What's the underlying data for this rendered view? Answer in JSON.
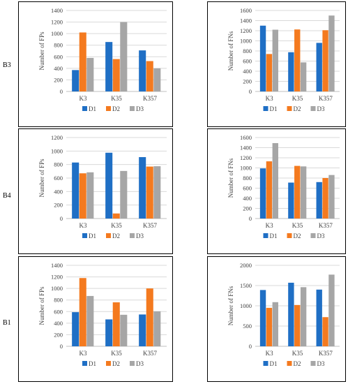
{
  "row_labels": [
    "B3",
    "B4",
    "B1"
  ],
  "colors": {
    "D1": "#1f6fc5",
    "D2": "#f47a1f",
    "D3": "#a6a6a6",
    "grid": "#d9d9d9",
    "axis": "#bfbfbf"
  },
  "chart_data": [
    {
      "type": "bar",
      "row": "B3",
      "column": "FPs",
      "ylabel": "Number of FPs",
      "categories": [
        "K3",
        "K35",
        "K357"
      ],
      "ylim": [
        0,
        1400
      ],
      "yticks": [
        0,
        200,
        400,
        600,
        800,
        1000,
        1200,
        1400
      ],
      "series": [
        {
          "name": "D1",
          "values": [
            370,
            855,
            710
          ]
        },
        {
          "name": "D2",
          "values": [
            1020,
            560,
            525
          ]
        },
        {
          "name": "D3",
          "values": [
            580,
            1200,
            400
          ]
        }
      ],
      "legend": "bottom",
      "grid": true
    },
    {
      "type": "bar",
      "row": "B3",
      "column": "FNs",
      "ylabel": "Number of FNs",
      "categories": [
        "K3",
        "K35",
        "K357"
      ],
      "ylim": [
        0,
        1600
      ],
      "yticks": [
        0,
        200,
        400,
        600,
        800,
        1000,
        1200,
        1400,
        1600
      ],
      "series": [
        {
          "name": "D1",
          "values": [
            1300,
            775,
            960
          ]
        },
        {
          "name": "D2",
          "values": [
            740,
            1225,
            1210
          ]
        },
        {
          "name": "D3",
          "values": [
            1220,
            575,
            1500
          ]
        }
      ],
      "legend": "bottom",
      "grid": true
    },
    {
      "type": "bar",
      "row": "B4",
      "column": "FPs",
      "ylabel": "Number of FPs",
      "categories": [
        "K3",
        "K35",
        "K357"
      ],
      "ylim": [
        0,
        1200
      ],
      "yticks": [
        0,
        200,
        400,
        600,
        800,
        1000,
        1200
      ],
      "series": [
        {
          "name": "D1",
          "values": [
            830,
            975,
            910
          ]
        },
        {
          "name": "D2",
          "values": [
            670,
            75,
            770
          ]
        },
        {
          "name": "D3",
          "values": [
            685,
            705,
            775
          ]
        }
      ],
      "legend": "bottom",
      "grid": true
    },
    {
      "type": "bar",
      "row": "B4",
      "column": "FNs",
      "ylabel": "Number of FNs",
      "categories": [
        "K3",
        "K35",
        "K357"
      ],
      "ylim": [
        0,
        1600
      ],
      "yticks": [
        0,
        200,
        400,
        600,
        800,
        1000,
        1200,
        1400,
        1600
      ],
      "series": [
        {
          "name": "D1",
          "values": [
            990,
            710,
            720
          ]
        },
        {
          "name": "D2",
          "values": [
            1130,
            1040,
            800
          ]
        },
        {
          "name": "D3",
          "values": [
            1490,
            1030,
            860
          ]
        }
      ],
      "legend": "bottom",
      "grid": true
    },
    {
      "type": "bar",
      "row": "B1",
      "column": "FPs",
      "ylabel": "Number of FPs",
      "categories": [
        "K3",
        "K35",
        "K357"
      ],
      "ylim": [
        0,
        1400
      ],
      "yticks": [
        0,
        200,
        400,
        600,
        800,
        1000,
        1200,
        1400
      ],
      "series": [
        {
          "name": "D1",
          "values": [
            590,
            465,
            550
          ]
        },
        {
          "name": "D2",
          "values": [
            1180,
            760,
            1000
          ]
        },
        {
          "name": "D3",
          "values": [
            870,
            545,
            605
          ]
        }
      ],
      "legend": "bottom",
      "grid": true
    },
    {
      "type": "bar",
      "row": "B1",
      "column": "FNs",
      "ylabel": "Number of FNs",
      "categories": [
        "K3",
        "K35",
        "K357"
      ],
      "ylim": [
        0,
        2000
      ],
      "yticks": [
        0,
        500,
        1000,
        1500,
        2000
      ],
      "series": [
        {
          "name": "D1",
          "values": [
            1390,
            1570,
            1400
          ]
        },
        {
          "name": "D2",
          "values": [
            950,
            1020,
            720
          ]
        },
        {
          "name": "D3",
          "values": [
            1090,
            1460,
            1770
          ]
        }
      ],
      "legend": "bottom",
      "grid": true
    }
  ]
}
